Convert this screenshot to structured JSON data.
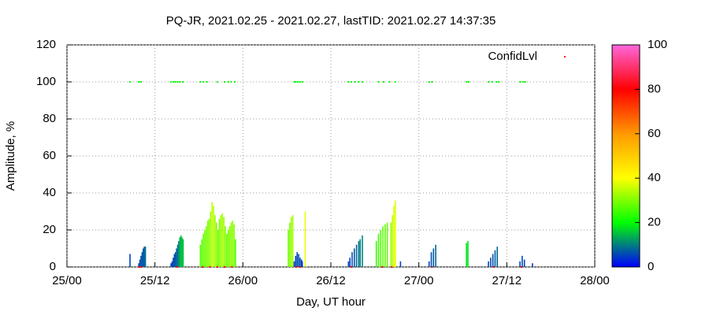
{
  "chart_data": {
    "type": "impulse",
    "title": "PQ-JR, 2021.02.25 - 2021.02.27, lastTID: 2021.02.27 14:37:35",
    "xlabel": "Day, UT hour",
    "ylabel": "Amplitude, %",
    "xlim": [
      0,
      72
    ],
    "xticks": [
      {
        "value": 0,
        "label": "25/00"
      },
      {
        "value": 12,
        "label": "25/12"
      },
      {
        "value": 24,
        "label": "26/00"
      },
      {
        "value": 36,
        "label": "26/12"
      },
      {
        "value": 48,
        "label": "27/00"
      },
      {
        "value": 60,
        "label": "27/12"
      },
      {
        "value": 72,
        "label": "28/00"
      }
    ],
    "ylim": [
      0,
      120
    ],
    "yticks": [
      0,
      20,
      40,
      60,
      80,
      100,
      120
    ],
    "grid": true,
    "cblim": [
      0,
      100
    ],
    "cbticks": [
      0,
      20,
      40,
      60,
      80,
      100
    ],
    "palette": [
      "#0000ff",
      "#00ff00",
      "#ffff00",
      "#ff9900",
      "#ff0000",
      "#ff66dd"
    ],
    "impulses": {
      "x": [
        8.6,
        9.8,
        9.95,
        10.1,
        10.25,
        10.4,
        10.55,
        10.7,
        14.2,
        14.35,
        14.5,
        14.65,
        14.8,
        14.95,
        15.1,
        15.25,
        15.4,
        15.55,
        15.7,
        15.85,
        18.2,
        18.4,
        18.6,
        18.8,
        19.0,
        19.2,
        19.4,
        19.6,
        19.8,
        20.0,
        20.2,
        20.4,
        20.6,
        20.8,
        21.0,
        21.2,
        21.4,
        21.6,
        21.8,
        22.0,
        22.2,
        22.4,
        22.6,
        22.8,
        23.0,
        30.2,
        30.4,
        30.6,
        30.8,
        31.0,
        31.2,
        31.4,
        31.6,
        31.8,
        32.0,
        32.1,
        32.5,
        38.4,
        38.6,
        38.9,
        39.2,
        39.5,
        39.8,
        40.0,
        40.3,
        42.2,
        42.5,
        42.8,
        43.1,
        43.4,
        43.7,
        44.2,
        44.4,
        44.6,
        44.8,
        45.5,
        49.4,
        49.7,
        50.0,
        50.3,
        54.5,
        54.7,
        57.5,
        57.8,
        58.1,
        58.4,
        58.7,
        61.8,
        62.1,
        62.4,
        63.5
      ],
      "values": [
        7,
        2,
        4,
        6,
        8,
        10,
        11,
        11,
        2,
        3,
        5,
        7,
        8,
        10,
        12,
        14,
        16,
        17,
        16,
        15,
        12,
        15,
        18,
        20,
        22,
        25,
        26,
        30,
        35,
        33,
        28,
        24,
        20,
        26,
        28,
        29,
        27,
        22,
        18,
        20,
        22,
        24,
        25,
        23,
        15,
        20,
        24,
        27,
        28,
        3,
        6,
        8,
        7,
        5,
        4,
        3,
        30,
        3,
        5,
        8,
        10,
        12,
        14,
        15,
        17,
        14,
        18,
        20,
        22,
        23,
        24,
        24,
        28,
        33,
        36,
        3,
        3,
        8,
        10,
        12,
        13,
        14,
        3,
        5,
        7,
        9,
        11,
        3,
        6,
        4,
        2
      ],
      "cb": [
        5,
        5,
        6,
        6,
        7,
        7,
        8,
        8,
        5,
        5,
        6,
        6,
        7,
        8,
        9,
        10,
        14,
        15,
        15,
        15,
        26,
        27,
        28,
        28,
        29,
        30,
        30,
        32,
        35,
        34,
        32,
        30,
        28,
        30,
        32,
        33,
        32,
        30,
        28,
        29,
        30,
        31,
        31,
        30,
        26,
        28,
        30,
        32,
        33,
        5,
        5,
        6,
        6,
        5,
        5,
        5,
        38,
        5,
        5,
        6,
        7,
        8,
        9,
        10,
        10,
        24,
        25,
        26,
        27,
        27,
        28,
        32,
        35,
        37,
        38,
        5,
        5,
        6,
        7,
        8,
        18,
        18,
        5,
        6,
        6,
        7,
        8,
        5,
        6,
        5,
        5
      ]
    },
    "points": [
      {
        "name": "ConfidLvl",
        "color": "#ff0000",
        "x": [
          9.9,
          10.2,
          15.0,
          18.5,
          19.5,
          20.5,
          21.5,
          22.5,
          31.3,
          31.8,
          38.8,
          43.0,
          44.3,
          49.8,
          58.2,
          62.0
        ],
        "values": [
          0,
          0,
          0,
          0,
          0,
          0,
          0,
          0,
          0,
          0,
          0,
          0,
          0,
          0,
          0,
          0
        ]
      },
      {
        "color": "#00ff00",
        "x": [
          8.6,
          9.8,
          10.1,
          14.2,
          14.5,
          14.8,
          15.1,
          15.4,
          15.8,
          18.2,
          18.6,
          19.1,
          20.5,
          21.5,
          22.0,
          22.4,
          22.9,
          31.0,
          31.2,
          31.5,
          31.8,
          32.1,
          38.4,
          38.8,
          39.3,
          39.8,
          40.3,
          42.5,
          43.2,
          44.0,
          44.8,
          49.4,
          49.8,
          54.5,
          54.8,
          57.5,
          58.0,
          58.6,
          58.9,
          61.8,
          62.2,
          62.5
        ],
        "values": [
          100,
          100,
          100,
          100,
          100,
          100,
          100,
          100,
          100,
          100,
          100,
          100,
          100,
          100,
          100,
          100,
          100,
          100,
          100,
          100,
          100,
          100,
          100,
          100,
          100,
          100,
          100,
          100,
          100,
          100,
          100,
          100,
          100,
          100,
          100,
          100,
          100,
          100,
          100,
          100,
          100,
          100
        ]
      }
    ]
  }
}
